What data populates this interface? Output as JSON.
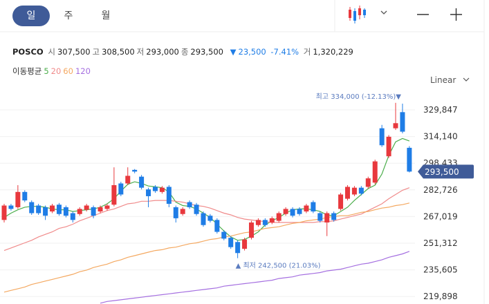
{
  "tabs": [
    "일",
    "주",
    "월"
  ],
  "header": {
    "name": "POSCO",
    "fields": [
      {
        "label": "시",
        "value": "307,500"
      },
      {
        "label": "고",
        "value": "308,500"
      },
      {
        "label": "저",
        "value": "293,000"
      },
      {
        "label": "종",
        "value": "293,500"
      }
    ],
    "change": {
      "arrow": "▼",
      "amount": "23,500",
      "percent": "-7.41%"
    },
    "volume": {
      "label": "거",
      "value": "1,320,229"
    }
  },
  "ma_title": "이동평균",
  "scale_mode": "Linear",
  "chart_data": {
    "type": "candlestick",
    "up_color": "#e8383d",
    "down_color": "#1f7de6",
    "ylim": [
      215500,
      341650
    ],
    "yticks": [
      {
        "value": 329847,
        "label": "329,847"
      },
      {
        "value": 314140,
        "label": "314,140"
      },
      {
        "value": 298433,
        "label": "298,433"
      },
      {
        "value": 282726,
        "label": "282,726"
      },
      {
        "value": 267019,
        "label": "267,019"
      },
      {
        "value": 251312,
        "label": "251,312"
      },
      {
        "value": 235605,
        "label": "235,605"
      },
      {
        "value": 219898,
        "label": "219,898"
      }
    ],
    "grid": true,
    "open": [
      265000,
      273500,
      272500,
      281500,
      275500,
      273500,
      272500,
      270000,
      274000,
      272500,
      269000,
      268500,
      271000,
      272500,
      270000,
      271500,
      274000,
      286500,
      286500,
      294500,
      290500,
      283000,
      284500,
      281500,
      284500,
      272500,
      268500,
      275500,
      274000,
      269000,
      267500,
      265000,
      258000,
      254500,
      252000,
      248000,
      254500,
      262000,
      265000,
      263500,
      264500,
      268500,
      271500,
      271500,
      270000,
      275500,
      269000,
      263500,
      269000,
      271500,
      277500,
      280000,
      284000,
      284500,
      287000,
      319000,
      302500,
      319000,
      328500,
      307500
    ],
    "high": [
      274500,
      274500,
      285500,
      282500,
      276500,
      274500,
      273500,
      274500,
      275000,
      273500,
      270000,
      272500,
      274500,
      273500,
      273500,
      274500,
      296000,
      287500,
      296000,
      295000,
      291500,
      284000,
      285500,
      285000,
      285500,
      273500,
      272500,
      276500,
      275000,
      270000,
      268500,
      266000,
      259000,
      255500,
      253000,
      254500,
      264500,
      266000,
      266000,
      267000,
      270000,
      272500,
      272500,
      272500,
      274500,
      276500,
      270000,
      270000,
      270000,
      281000,
      285500,
      285000,
      285000,
      290500,
      300500,
      321000,
      315000,
      334000,
      333500,
      308500
    ],
    "low": [
      263500,
      270500,
      271500,
      275500,
      268000,
      268000,
      265000,
      269000,
      267500,
      266500,
      263500,
      267500,
      270000,
      266000,
      269000,
      270500,
      273000,
      279000,
      285500,
      292500,
      283000,
      272500,
      281000,
      280500,
      272500,
      263500,
      267500,
      271500,
      267500,
      261000,
      263500,
      257000,
      253000,
      248000,
      242500,
      247000,
      253500,
      261000,
      261000,
      262500,
      263500,
      267500,
      266500,
      267500,
      269000,
      269000,
      263500,
      255500,
      264000,
      270500,
      276500,
      279000,
      279500,
      283500,
      286000,
      308000,
      301500,
      318000,
      316000,
      293000
    ],
    "close": [
      273500,
      271500,
      281500,
      276500,
      269000,
      269000,
      267500,
      273500,
      268500,
      267500,
      265000,
      271500,
      273500,
      267500,
      272500,
      273500,
      285500,
      280000,
      291000,
      293500,
      284000,
      279000,
      282000,
      284000,
      274500,
      266000,
      271500,
      272500,
      268500,
      262000,
      264500,
      258000,
      254000,
      249000,
      245500,
      253500,
      263500,
      265000,
      262000,
      266000,
      269000,
      271500,
      267500,
      268500,
      273500,
      270000,
      264500,
      269000,
      265000,
      280000,
      284500,
      284000,
      280500,
      289500,
      299500,
      309000,
      314000,
      322000,
      317000,
      293500
    ],
    "moving_averages": [
      {
        "name": "5",
        "color": "#4cae4c",
        "values": [
          266500,
          269000,
          271000,
          272500,
          273000,
          273000,
          272500,
          271500,
          271000,
          271000,
          270000,
          270500,
          271000,
          271500,
          272500,
          274500,
          277500,
          282000,
          286000,
          287500,
          286500,
          285000,
          284500,
          284000,
          281500,
          275500,
          273500,
          273000,
          271500,
          269000,
          266500,
          262500,
          258500,
          255000,
          253000,
          253500,
          255500,
          258000,
          262000,
          264500,
          266500,
          269000,
          271000,
          271500,
          271500,
          271000,
          270000,
          268000,
          267500,
          270000,
          272500,
          276500,
          280000,
          283500,
          285500,
          292000,
          303000,
          311000,
          313000,
          311500
        ]
      },
      {
        "name": "20",
        "color": "#f08a8a",
        "values": [
          247000,
          248500,
          250000,
          251500,
          253000,
          255000,
          256500,
          258000,
          260000,
          261000,
          262500,
          264500,
          266000,
          267500,
          269000,
          270500,
          271500,
          273000,
          274500,
          275000,
          276000,
          276000,
          276500,
          276500,
          276500,
          276000,
          275500,
          274500,
          273500,
          273000,
          272000,
          270500,
          269000,
          268000,
          266500,
          265500,
          265000,
          264500,
          264000,
          263500,
          263500,
          263500,
          263500,
          263500,
          263500,
          263500,
          264000,
          264000,
          264500,
          265500,
          266500,
          267500,
          268500,
          270500,
          272500,
          274500,
          277500,
          280000,
          282500,
          284000
        ]
      },
      {
        "name": "60",
        "color": "#f4a860",
        "values": [
          222500,
          223500,
          224500,
          225500,
          227000,
          228000,
          229000,
          230000,
          231000,
          232000,
          233000,
          234500,
          235500,
          237000,
          238000,
          239000,
          240500,
          241500,
          243000,
          244000,
          245000,
          246000,
          247000,
          247500,
          248500,
          249000,
          250000,
          251000,
          251500,
          252500,
          253500,
          254000,
          255000,
          255500,
          256500,
          257500,
          258000,
          259000,
          260000,
          260500,
          261000,
          262000,
          263000,
          263500,
          264500,
          265000,
          265500,
          266500,
          267000,
          267500,
          267500,
          268500,
          269500,
          270000,
          271000,
          272000,
          272500,
          273500,
          274000,
          275000
        ]
      },
      {
        "name": "120",
        "color": "#a46ee0",
        "values": [
          null,
          null,
          null,
          null,
          null,
          null,
          null,
          null,
          null,
          null,
          null,
          null,
          null,
          null,
          216000,
          217000,
          217500,
          218000,
          218500,
          219000,
          219500,
          220000,
          220500,
          221000,
          221500,
          222000,
          222500,
          223000,
          223500,
          224000,
          224500,
          225000,
          226000,
          226500,
          227000,
          227500,
          228000,
          228500,
          229000,
          229500,
          230500,
          231000,
          231500,
          232500,
          233000,
          233500,
          234000,
          235000,
          235500,
          236000,
          237000,
          238000,
          239000,
          239500,
          240500,
          241500,
          243000,
          244000,
          245000,
          246500
        ]
      }
    ],
    "high_label": "최고 334,000 (-12.13%)▼",
    "low_label": "▲ 최저 242,500 (21.03%)",
    "last_price_label": "293,500"
  }
}
